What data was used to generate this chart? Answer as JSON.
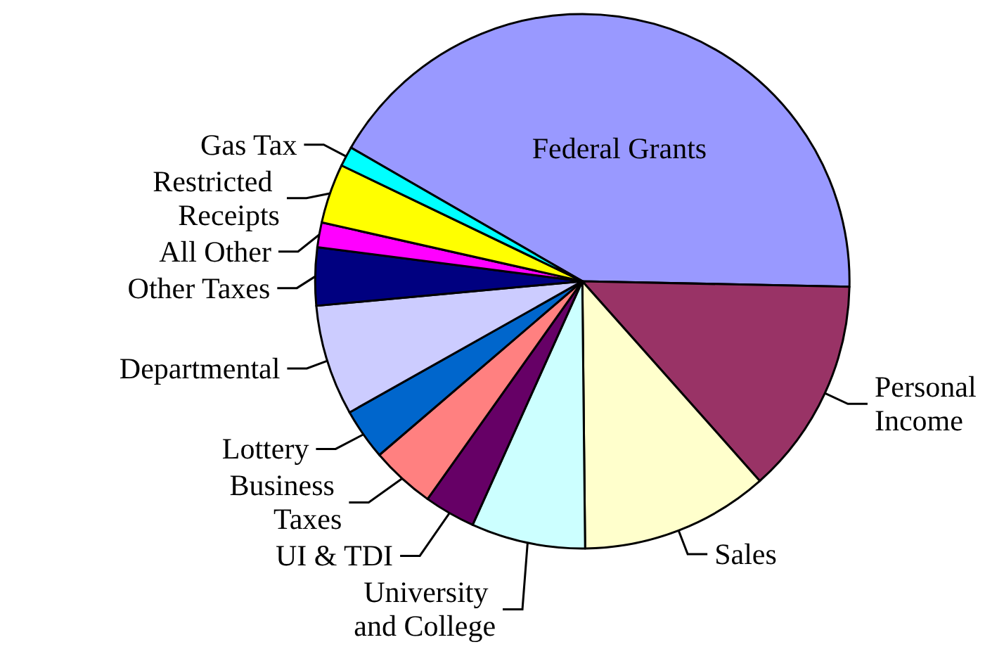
{
  "chart_data": {
    "type": "pie",
    "categories": [
      "Federal Grants",
      "Personal Income",
      "Sales",
      "University and College",
      "UI & TDI",
      "Business Taxes",
      "Lottery",
      "Departmental",
      "Other Taxes",
      "All Other",
      "Restricted Receipts",
      "Gas Tax"
    ],
    "values": [
      42.0,
      13.1,
      11.4,
      6.9,
      3.1,
      3.9,
      3.1,
      6.7,
      3.5,
      1.5,
      3.6,
      1.2
    ],
    "colors": [
      "#9999ff",
      "#993366",
      "#ffffcc",
      "#ccffff",
      "#660066",
      "#ff8080",
      "#0066cc",
      "#ccccff",
      "#000080",
      "#ff00ff",
      "#ffff00",
      "#00ffff"
    ],
    "legend": false
  }
}
